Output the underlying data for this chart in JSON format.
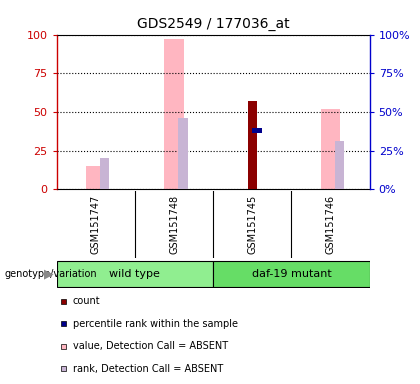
{
  "title": "GDS2549 / 177036_at",
  "samples": [
    "GSM151747",
    "GSM151748",
    "GSM151745",
    "GSM151746"
  ],
  "genotype_groups": [
    {
      "label": "wild type",
      "color": "#90EE90",
      "start": 0,
      "end": 2
    },
    {
      "label": "daf-19 mutant",
      "color": "#66DD66",
      "start": 2,
      "end": 4
    }
  ],
  "bars": {
    "GSM151747": {
      "value_absent": 15,
      "rank_absent": 20,
      "count": null,
      "percentile": null
    },
    "GSM151748": {
      "value_absent": 97,
      "rank_absent": 46,
      "count": null,
      "percentile": null
    },
    "GSM151745": {
      "value_absent": null,
      "rank_absent": null,
      "count": 57,
      "percentile": 38
    },
    "GSM151746": {
      "value_absent": 52,
      "rank_absent": 31,
      "count": null,
      "percentile": null
    }
  },
  "ylim": [
    0,
    100
  ],
  "yticks": [
    0,
    25,
    50,
    75,
    100
  ],
  "left_axis_color": "#CC0000",
  "right_axis_color": "#0000CC",
  "bar_colors": {
    "count": "#8B0000",
    "percentile": "#00008B",
    "value_absent": "#FFB6C1",
    "rank_absent": "#C8B4D4"
  },
  "value_bar_width": 0.25,
  "rank_bar_width": 0.12,
  "count_bar_width": 0.12,
  "percentile_bar_height": 3,
  "genotype_label": "genotype/variation",
  "legend_items": [
    {
      "color": "#8B0000",
      "label": "count"
    },
    {
      "color": "#00008B",
      "label": "percentile rank within the sample"
    },
    {
      "color": "#FFB6C1",
      "label": "value, Detection Call = ABSENT"
    },
    {
      "color": "#C8B4D4",
      "label": "rank, Detection Call = ABSENT"
    }
  ],
  "background_color": "#FFFFFF",
  "sample_box_color": "#C8C8C8",
  "sample_box_border": "#000000",
  "group_border": "#000000"
}
